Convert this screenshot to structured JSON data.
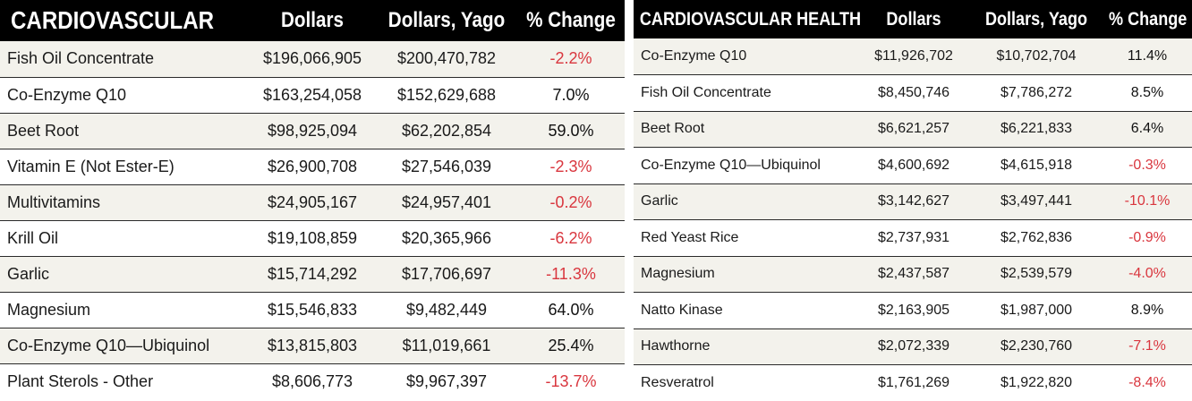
{
  "colors": {
    "header_bg": "#000000",
    "header_text": "#ffffff",
    "negative": "#d9363e",
    "row_shade": "#f3f2ec"
  },
  "left_table": {
    "headers": [
      "CARDIOVASCULAR",
      "Dollars",
      "Dollars, Yago",
      "% Change"
    ],
    "rows": [
      {
        "name": "Fish Oil Concentrate",
        "dollars": "$196,066,905",
        "dollars_yago": "$200,470,782",
        "change": "-2.2%"
      },
      {
        "name": "Co-Enzyme Q10",
        "dollars": "$163,254,058",
        "dollars_yago": "$152,629,688",
        "change": "7.0%"
      },
      {
        "name": "Beet Root",
        "dollars": "$98,925,094",
        "dollars_yago": "$62,202,854",
        "change": "59.0%"
      },
      {
        "name": "Vitamin E (Not Ester-E)",
        "dollars": "$26,900,708",
        "dollars_yago": "$27,546,039",
        "change": "-2.3%"
      },
      {
        "name": "Multivitamins",
        "dollars": "$24,905,167",
        "dollars_yago": "$24,957,401",
        "change": "-0.2%"
      },
      {
        "name": "Krill Oil",
        "dollars": "$19,108,859",
        "dollars_yago": "$20,365,966",
        "change": "-6.2%"
      },
      {
        "name": "Garlic",
        "dollars": "$15,714,292",
        "dollars_yago": "$17,706,697",
        "change": "-11.3%"
      },
      {
        "name": "Magnesium",
        "dollars": "$15,546,833",
        "dollars_yago": "$9,482,449",
        "change": "64.0%"
      },
      {
        "name": "Co-Enzyme Q10—Ubiquinol",
        "dollars": "$13,815,803",
        "dollars_yago": "$11,019,661",
        "change": "25.4%"
      },
      {
        "name": "Plant Sterols - Other",
        "dollars": "$8,606,773",
        "dollars_yago": "$9,967,397",
        "change": "-13.7%"
      }
    ]
  },
  "right_table": {
    "headers": [
      "CARDIOVASCULAR HEALTH",
      "Dollars",
      "Dollars, Yago",
      "% Change"
    ],
    "rows": [
      {
        "name": "Co-Enzyme Q10",
        "dollars": "$11,926,702",
        "dollars_yago": "$10,702,704",
        "change": "11.4%"
      },
      {
        "name": "Fish Oil Concentrate",
        "dollars": "$8,450,746",
        "dollars_yago": "$7,786,272",
        "change": "8.5%"
      },
      {
        "name": "Beet Root",
        "dollars": "$6,621,257",
        "dollars_yago": "$6,221,833",
        "change": "6.4%"
      },
      {
        "name": "Co-Enzyme Q10—Ubiquinol",
        "dollars": "$4,600,692",
        "dollars_yago": "$4,615,918",
        "change": "-0.3%"
      },
      {
        "name": "Garlic",
        "dollars": "$3,142,627",
        "dollars_yago": "$3,497,441",
        "change": "-10.1%"
      },
      {
        "name": "Red Yeast Rice",
        "dollars": "$2,737,931",
        "dollars_yago": "$2,762,836",
        "change": "-0.9%"
      },
      {
        "name": "Magnesium",
        "dollars": "$2,437,587",
        "dollars_yago": "$2,539,579",
        "change": "-4.0%"
      },
      {
        "name": "Natto Kinase",
        "dollars": "$2,163,905",
        "dollars_yago": "$1,987,000",
        "change": "8.9%"
      },
      {
        "name": "Hawthorne",
        "dollars": "$2,072,339",
        "dollars_yago": "$2,230,760",
        "change": "-7.1%"
      },
      {
        "name": "Resveratrol",
        "dollars": "$1,761,269",
        "dollars_yago": "$1,922,820",
        "change": "-8.4%"
      }
    ]
  }
}
